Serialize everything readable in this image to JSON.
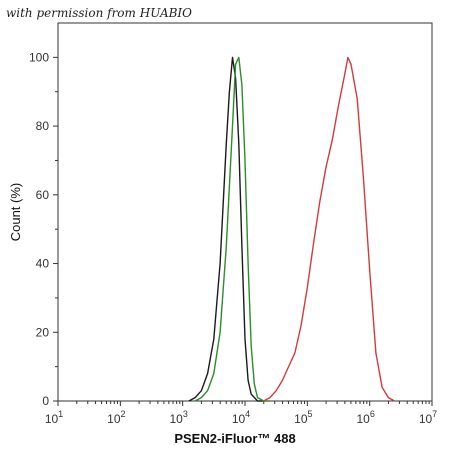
{
  "watermark": "with permission from HUABIO",
  "chart_data": {
    "type": "line",
    "title": "",
    "xlabel": "PSEN2-iFluor™ 488",
    "ylabel": "Count  (%)",
    "xscale": "log",
    "xlim": [
      10,
      10000000
    ],
    "ylim": [
      0,
      110
    ],
    "grid": false,
    "legend": "none",
    "xticks": [
      {
        "base": "10",
        "exp": "1"
      },
      {
        "base": "10",
        "exp": "2"
      },
      {
        "base": "10",
        "exp": "3"
      },
      {
        "base": "10",
        "exp": "4"
      },
      {
        "base": "10",
        "exp": "5"
      },
      {
        "base": "10",
        "exp": "6"
      },
      {
        "base": "10",
        "exp": "7"
      }
    ],
    "yticks": [
      "0",
      "20",
      "40",
      "60",
      "80",
      "100"
    ],
    "series": [
      {
        "color": "#1a1a1a",
        "x": [
          1259,
          1585,
          1995,
          2512,
          3162,
          3981,
          5012,
          5623,
          6310,
          7079,
          7943,
          8913,
          10000,
          11220,
          12589,
          15849,
          19953
        ],
        "y": [
          0,
          1,
          3,
          8,
          18,
          40,
          75,
          90,
          100,
          94,
          75,
          45,
          18,
          6,
          2,
          0,
          0
        ]
      },
      {
        "color": "#2e8b2e",
        "x": [
          1585,
          1995,
          2512,
          3162,
          3981,
          5012,
          6310,
          7079,
          7943,
          8913,
          10000,
          11220,
          12589,
          14125,
          15849,
          19953,
          25119
        ],
        "y": [
          0,
          1,
          3,
          8,
          20,
          45,
          80,
          98,
          100,
          92,
          70,
          40,
          16,
          5,
          1,
          0,
          0
        ]
      },
      {
        "color": "#d43a3a",
        "x": [
          19953,
          25119,
          31623,
          39811,
          50119,
          63096,
          79433,
          100000,
          125893,
          158489,
          199526,
          251189,
          316228,
          398107,
          446684,
          501187,
          630957,
          794328,
          1000000,
          1258925,
          1584893,
          1995262,
          2511886
        ],
        "y": [
          0,
          1,
          3,
          6,
          10,
          14,
          22,
          33,
          46,
          58,
          68,
          76,
          86,
          95,
          100,
          98,
          88,
          65,
          38,
          14,
          4,
          1,
          0
        ]
      }
    ]
  }
}
